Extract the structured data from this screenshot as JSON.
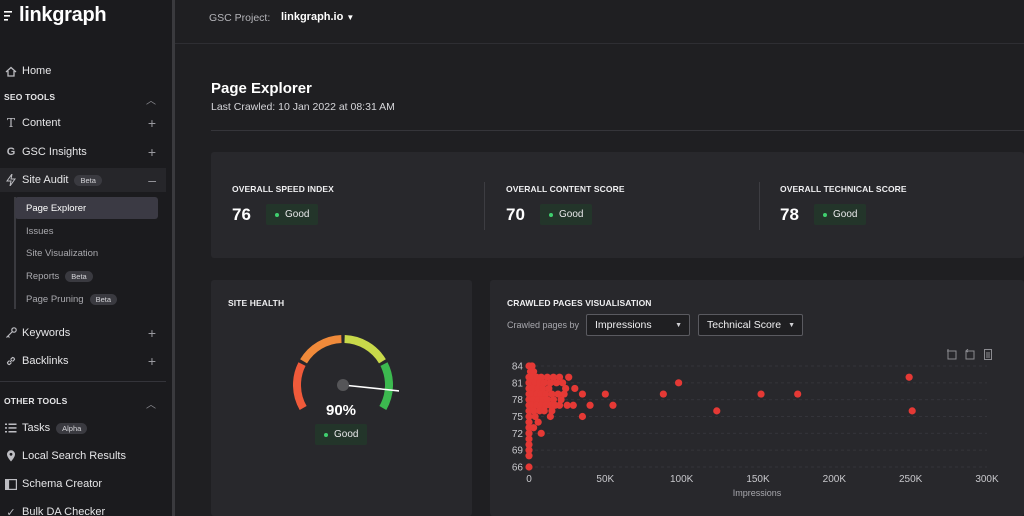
{
  "app": {
    "logo_text": "linkgraph"
  },
  "topbar": {
    "gsc_label": "GSC Project:",
    "gsc_project": "linkgraph.io"
  },
  "sidebar": {
    "home": "Home",
    "seo_tools": "SEO TOOLS",
    "content": "Content",
    "gsc_insights": "GSC Insights",
    "site_audit": "Site Audit",
    "site_audit_badge": "Beta",
    "sub_items": [
      {
        "label": "Page Explorer"
      },
      {
        "label": "Issues"
      },
      {
        "label": "Site Visualization"
      },
      {
        "label": "Reports",
        "badge": "Beta"
      },
      {
        "label": "Page Pruning",
        "badge": "Beta"
      }
    ],
    "keywords": "Keywords",
    "backlinks": "Backlinks",
    "other_tools": "OTHER TOOLS",
    "tasks": "Tasks",
    "tasks_badge": "Alpha",
    "local_search": "Local Search Results",
    "schema_creator": "Schema Creator",
    "bulk_da": "Bulk DA Checker"
  },
  "main": {
    "title": "Page Explorer",
    "last_crawled": "Last Crawled: 10 Jan 2022 at 08:31 AM",
    "scores": [
      {
        "label": "OVERALL SPEED INDEX",
        "value": "76",
        "status": "Good"
      },
      {
        "label": "OVERALL CONTENT SCORE",
        "value": "70",
        "status": "Good"
      },
      {
        "label": "OVERALL TECHNICAL SCORE",
        "value": "78",
        "status": "Good"
      }
    ],
    "site_health": {
      "title": "SITE HEALTH",
      "value": "90%",
      "value_fraction": 0.9,
      "status": "Good"
    },
    "crawled": {
      "title": "CRAWLED PAGES VISUALISATION",
      "filter_label": "Crawled pages by",
      "x_select": "Impressions",
      "y_select": "Technical Score"
    }
  },
  "colors": {
    "accent_green": "#3fcf6e",
    "point_red": "#e53935",
    "gauge_segments": [
      "#f05a3a",
      "#f08a3a",
      "#c8d94a",
      "#3cb94f"
    ]
  },
  "chart_data": {
    "type": "scatter",
    "title": "CRAWLED PAGES VISUALISATION",
    "xlabel": "Impressions",
    "ylabel": "",
    "xlim": [
      0,
      300000
    ],
    "ylim": [
      66,
      84
    ],
    "x_ticks": [
      "0",
      "50K",
      "100K",
      "150K",
      "200K",
      "250K",
      "300K"
    ],
    "y_ticks": [
      "66",
      "69",
      "72",
      "75",
      "78",
      "81",
      "84"
    ],
    "points": [
      [
        0,
        84
      ],
      [
        2000,
        84
      ],
      [
        1000,
        83
      ],
      [
        3000,
        83
      ],
      [
        0,
        82
      ],
      [
        2000,
        82
      ],
      [
        5000,
        82
      ],
      [
        8000,
        82
      ],
      [
        12000,
        82
      ],
      [
        16000,
        82
      ],
      [
        20000,
        82
      ],
      [
        26000,
        82
      ],
      [
        0,
        81
      ],
      [
        1500,
        81
      ],
      [
        4000,
        81
      ],
      [
        7000,
        81
      ],
      [
        10000,
        81
      ],
      [
        14000,
        81
      ],
      [
        18000,
        81
      ],
      [
        22000,
        81
      ],
      [
        0,
        80
      ],
      [
        2500,
        80
      ],
      [
        6000,
        80
      ],
      [
        9000,
        80
      ],
      [
        13000,
        80
      ],
      [
        24000,
        80
      ],
      [
        30000,
        80
      ],
      [
        0,
        79
      ],
      [
        2000,
        79
      ],
      [
        5000,
        79
      ],
      [
        8000,
        79
      ],
      [
        11000,
        79
      ],
      [
        15000,
        79
      ],
      [
        19000,
        79
      ],
      [
        23000,
        79
      ],
      [
        35000,
        79
      ],
      [
        50000,
        79
      ],
      [
        88000,
        79
      ],
      [
        152000,
        79
      ],
      [
        176000,
        79
      ],
      [
        0,
        78
      ],
      [
        3000,
        78
      ],
      [
        6000,
        78
      ],
      [
        9000,
        78
      ],
      [
        12000,
        78
      ],
      [
        16000,
        78
      ],
      [
        21000,
        78
      ],
      [
        0,
        77
      ],
      [
        2000,
        77
      ],
      [
        5000,
        77
      ],
      [
        8000,
        77
      ],
      [
        11000,
        77
      ],
      [
        14000,
        77
      ],
      [
        17000,
        77
      ],
      [
        20000,
        77
      ],
      [
        25000,
        77
      ],
      [
        29000,
        77
      ],
      [
        40000,
        77
      ],
      [
        55000,
        77
      ],
      [
        0,
        76
      ],
      [
        3000,
        76
      ],
      [
        7000,
        76
      ],
      [
        10000,
        76
      ],
      [
        15000,
        76
      ],
      [
        123000,
        76
      ],
      [
        251000,
        76
      ],
      [
        0,
        75
      ],
      [
        4000,
        75
      ],
      [
        14000,
        75
      ],
      [
        35000,
        75
      ],
      [
        0,
        74
      ],
      [
        6000,
        74
      ],
      [
        0,
        73
      ],
      [
        3000,
        73
      ],
      [
        0,
        72
      ],
      [
        8000,
        72
      ],
      [
        0,
        71
      ],
      [
        0,
        70
      ],
      [
        0,
        69
      ],
      [
        0,
        68
      ],
      [
        0,
        66
      ],
      [
        98000,
        81
      ],
      [
        249000,
        82
      ]
    ]
  }
}
